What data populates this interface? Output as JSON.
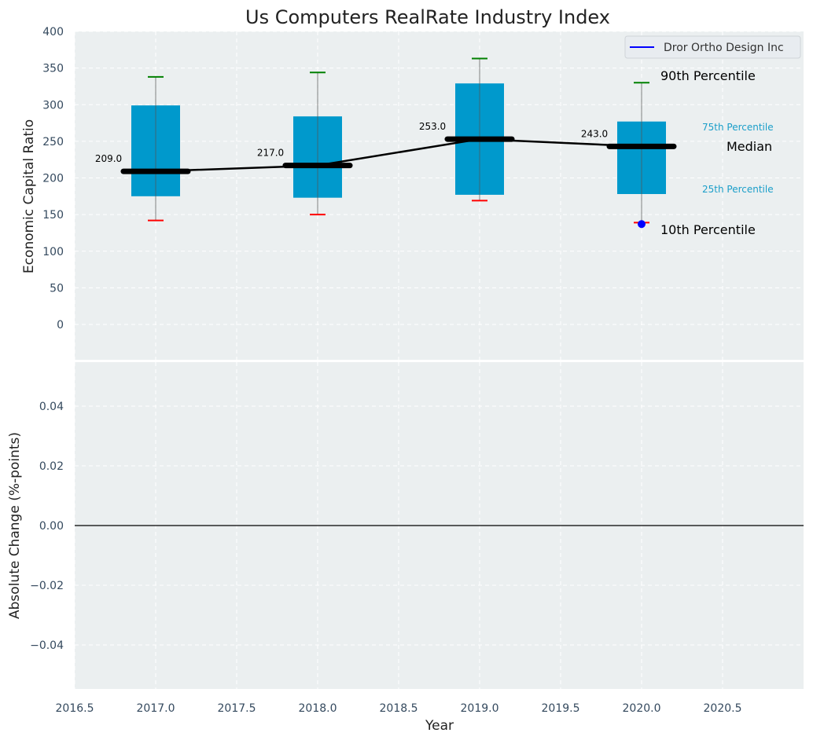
{
  "chart_data": [
    {
      "type": "box",
      "title": "Us Computers RealRate Industry Index",
      "xlabel": "",
      "ylabel": "Economic Capital Ratio",
      "xlim": [
        2016.5,
        2021.0
      ],
      "ylim": [
        -50,
        400
      ],
      "grid": true,
      "yticks": [
        0,
        50,
        100,
        150,
        200,
        250,
        300,
        350,
        400
      ],
      "ytick_labels": [
        "0",
        "50",
        "100",
        "150",
        "200",
        "250",
        "300",
        "350",
        "400"
      ],
      "categories": [
        2017,
        2018,
        2019,
        2020
      ],
      "series": [
        {
          "name": "p90",
          "values": [
            338,
            344,
            363,
            330
          ]
        },
        {
          "name": "p75",
          "values": [
            299,
            284,
            329,
            277
          ]
        },
        {
          "name": "median",
          "values": [
            209,
            217,
            253,
            243
          ]
        },
        {
          "name": "p25",
          "values": [
            175,
            173,
            177,
            178
          ]
        },
        {
          "name": "p10",
          "values": [
            142,
            150,
            169,
            139
          ]
        }
      ],
      "median_labels": [
        "209.0",
        "217.0",
        "253.0",
        "243.0"
      ],
      "company_points": [
        {
          "x": 2020,
          "y": 137
        }
      ],
      "legend": {
        "position": "top-right",
        "entries": [
          {
            "label": "Dror Ortho Design Inc",
            "color": "#0000ff"
          }
        ]
      },
      "annotations": {
        "p90": "90th Percentile",
        "p75": "75th Percentile",
        "median": "Median",
        "p25": "25th Percentile",
        "p10": "10th Percentile"
      },
      "colors": {
        "box": "#0099cc",
        "p90": "#008000",
        "p10": "#ff0000",
        "median": "#000000",
        "company": "#0000ff",
        "bg": "#ebeff0"
      }
    },
    {
      "type": "line",
      "title": "",
      "xlabel": "Year",
      "ylabel": "Absolute Change (%-points)",
      "xlim": [
        2016.5,
        2021.0
      ],
      "ylim": [
        -0.055,
        0.055
      ],
      "grid": true,
      "xticks": [
        2016.5,
        2017.0,
        2017.5,
        2018.0,
        2018.5,
        2019.0,
        2019.5,
        2020.0,
        2020.5
      ],
      "xtick_labels": [
        "2016.5",
        "2017.0",
        "2017.5",
        "2018.0",
        "2018.5",
        "2019.0",
        "2019.5",
        "2020.0",
        "2020.5"
      ],
      "yticks": [
        -0.04,
        -0.02,
        0.0,
        0.02,
        0.04
      ],
      "ytick_labels": [
        "−0.04",
        "−0.02",
        "0.00",
        "0.02",
        "0.04"
      ],
      "reference_line": 0.0,
      "series": []
    }
  ]
}
